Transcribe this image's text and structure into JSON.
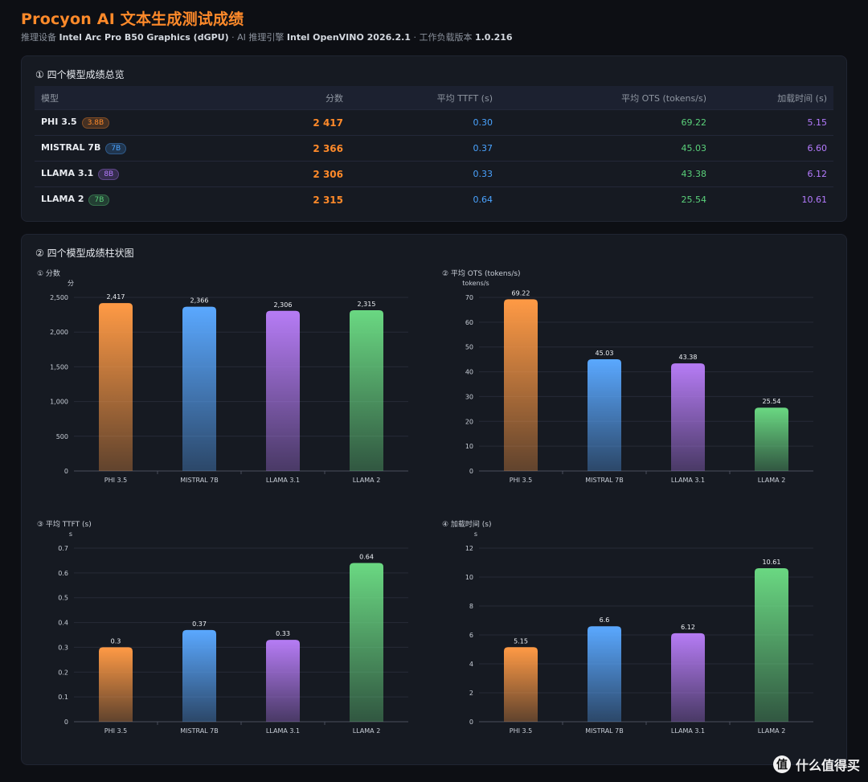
{
  "header": {
    "title": "Procyon AI 文本生成测试成绩",
    "device_label": "推理设备",
    "device_value": "Intel Arc Pro B50 Graphics (dGPU)",
    "engine_label": "· AI 推理引擎",
    "engine_value": "Intel OpenVINO 2026.2.1",
    "version_label": "· 工作负载版本",
    "version_value": "1.0.216"
  },
  "summary": {
    "title": "① 四个模型成绩总览",
    "columns": [
      "模型",
      "分数",
      "平均 TTFT (s)",
      "平均 OTS (tokens/s)",
      "加载时间 (s)"
    ],
    "rows": [
      {
        "model": "PHI 3.5",
        "tag": "3.8B",
        "tag_color": "#ff8a2a",
        "score": "2 417",
        "ttft": "0.30",
        "ots": "69.22",
        "load": "5.15"
      },
      {
        "model": "MISTRAL 7B",
        "tag": "7B",
        "tag_color": "#4aa3ff",
        "score": "2 366",
        "ttft": "0.37",
        "ots": "45.03",
        "load": "6.60"
      },
      {
        "model": "LLAMA 3.1",
        "tag": "8B",
        "tag_color": "#b57bff",
        "score": "2 306",
        "ttft": "0.33",
        "ots": "43.38",
        "load": "6.12"
      },
      {
        "model": "LLAMA 2",
        "tag": "7B",
        "tag_color": "#5ad17a",
        "score": "2 315",
        "ttft": "0.64",
        "ots": "25.54",
        "load": "10.61"
      }
    ]
  },
  "charts_section": {
    "title": "② 四个模型成绩柱状图"
  },
  "chart_data": [
    {
      "type": "bar",
      "title": "① 分数",
      "unit": "分",
      "categories": [
        "PHI 3.5",
        "MISTRAL 7B",
        "LLAMA 3.1",
        "LLAMA 2"
      ],
      "values": [
        2417,
        2366,
        2306,
        2315
      ],
      "value_labels": [
        "2,417",
        "2,366",
        "2,306",
        "2,315"
      ],
      "ylim": [
        0,
        2500
      ],
      "yticks": [
        0,
        500,
        1000,
        1500,
        2000,
        2500
      ],
      "ytick_labels": [
        "0",
        "500",
        "1,000",
        "1,500",
        "2,000",
        "2,500"
      ],
      "colors": [
        "#ff9a45",
        "#5aa8ff",
        "#b67cf5",
        "#6ad882"
      ]
    },
    {
      "type": "bar",
      "title": "② 平均 OTS (tokens/s)",
      "unit": "tokens/s",
      "categories": [
        "PHI 3.5",
        "MISTRAL 7B",
        "LLAMA 3.1",
        "LLAMA 2"
      ],
      "values": [
        69.22,
        45.03,
        43.38,
        25.54
      ],
      "value_labels": [
        "69.22",
        "45.03",
        "43.38",
        "25.54"
      ],
      "ylim": [
        0,
        70
      ],
      "yticks": [
        0,
        10,
        20,
        30,
        40,
        50,
        60,
        70
      ],
      "ytick_labels": [
        "0",
        "10",
        "20",
        "30",
        "40",
        "50",
        "60",
        "70"
      ],
      "colors": [
        "#ff9a45",
        "#5aa8ff",
        "#b67cf5",
        "#6ad882"
      ]
    },
    {
      "type": "bar",
      "title": "③ 平均 TTFT (s)",
      "unit": "s",
      "categories": [
        "PHI 3.5",
        "MISTRAL 7B",
        "LLAMA 3.1",
        "LLAMA 2"
      ],
      "values": [
        0.3,
        0.37,
        0.33,
        0.64
      ],
      "value_labels": [
        "0.3",
        "0.37",
        "0.33",
        "0.64"
      ],
      "ylim": [
        0,
        0.7
      ],
      "yticks": [
        0,
        0.1,
        0.2,
        0.3,
        0.4,
        0.5,
        0.6,
        0.7
      ],
      "ytick_labels": [
        "0",
        "0.1",
        "0.2",
        "0.3",
        "0.4",
        "0.5",
        "0.6",
        "0.7"
      ],
      "colors": [
        "#ff9a45",
        "#5aa8ff",
        "#b67cf5",
        "#6ad882"
      ]
    },
    {
      "type": "bar",
      "title": "④ 加载时间 (s)",
      "unit": "s",
      "categories": [
        "PHI 3.5",
        "MISTRAL 7B",
        "LLAMA 3.1",
        "LLAMA 2"
      ],
      "values": [
        5.15,
        6.6,
        6.12,
        10.61
      ],
      "value_labels": [
        "5.15",
        "6.6",
        "6.12",
        "10.61"
      ],
      "ylim": [
        0,
        12
      ],
      "yticks": [
        0,
        2,
        4,
        6,
        8,
        10,
        12
      ],
      "ytick_labels": [
        "0",
        "2",
        "4",
        "6",
        "8",
        "10",
        "12"
      ],
      "colors": [
        "#ff9a45",
        "#5aa8ff",
        "#b67cf5",
        "#6ad882"
      ]
    }
  ],
  "watermark": {
    "logo_glyph": "值",
    "text": "什么值得买"
  }
}
